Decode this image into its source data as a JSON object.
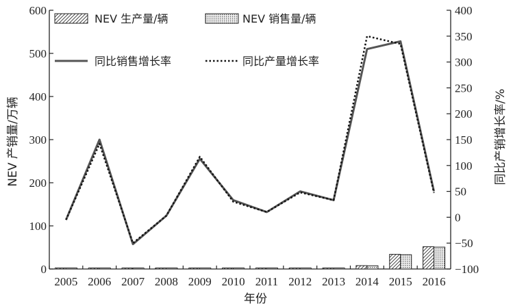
{
  "chart_data": {
    "type": "bar",
    "categories": [
      "2005",
      "2006",
      "2007",
      "2008",
      "2009",
      "2010",
      "2011",
      "2012",
      "2013",
      "2014",
      "2015",
      "2016"
    ],
    "xlabel": "年份",
    "ylabel_left": "NEV 产销量/万辆",
    "ylabel_right": "同比产销增长率/%",
    "ylim_left": [
      0,
      600
    ],
    "ylim_right": [
      -100,
      400
    ],
    "yticks_left": [
      "0",
      "100",
      "200",
      "300",
      "400",
      "500",
      "600"
    ],
    "yticks_right": [
      "−100",
      "−50",
      "0",
      "50",
      "100",
      "150",
      "200",
      "250",
      "300",
      "350",
      "400"
    ],
    "bar_series": [
      {
        "name": "NEV 生产量/辆",
        "pattern": "hatch",
        "values": [
          0.1,
          0.5,
          0.1,
          0.3,
          0.5,
          0.7,
          0.8,
          1.0,
          1.7,
          7.8,
          34.0,
          51.7
        ]
      },
      {
        "name": "NEV 销售量/辆",
        "pattern": "dots",
        "values": [
          0.1,
          0.2,
          0.1,
          0.3,
          0.5,
          0.7,
          0.8,
          1.3,
          1.8,
          7.5,
          33.1,
          50.7
        ]
      }
    ],
    "line_series": [
      {
        "name": "同比销售增长率",
        "style": "solid",
        "values": [
          -5,
          150,
          -52,
          3,
          113,
          33,
          10,
          50,
          33,
          325,
          340,
          50
        ]
      },
      {
        "name": "同比产量增长率",
        "style": "dotted",
        "values": [
          -5,
          142,
          -50,
          3,
          117,
          30,
          10,
          48,
          33,
          350,
          335,
          47
        ]
      }
    ],
    "grid": false,
    "legend_position": "top-left"
  }
}
